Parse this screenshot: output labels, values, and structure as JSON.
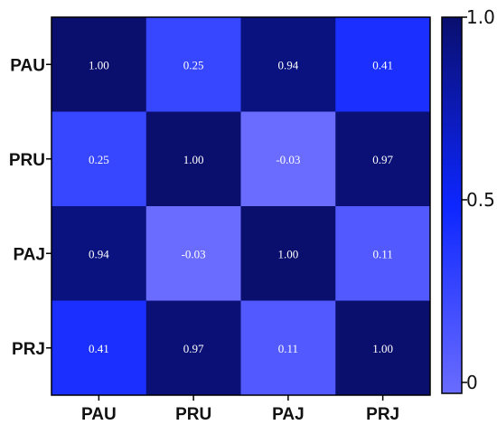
{
  "chart_data": {
    "type": "heatmap",
    "title": "",
    "xlabel": "",
    "ylabel": "",
    "rows": [
      "PAU",
      "PRU",
      "PAJ",
      "PRJ"
    ],
    "columns": [
      "PAU",
      "PRU",
      "PAJ",
      "PRJ"
    ],
    "values": [
      [
        1.0,
        0.25,
        0.94,
        0.41
      ],
      [
        0.25,
        1.0,
        -0.03,
        0.97
      ],
      [
        0.94,
        -0.03,
        1.0,
        0.11
      ],
      [
        0.41,
        0.97,
        0.11,
        1.0
      ]
    ],
    "value_labels": [
      [
        "1.00",
        "0.25",
        "0.94",
        "0.41"
      ],
      [
        "0.25",
        "1.00",
        "-0.03",
        "0.97"
      ],
      [
        "0.94",
        "-0.03",
        "1.00",
        "0.11"
      ],
      [
        "0.41",
        "0.97",
        "0.11",
        "1.00"
      ]
    ],
    "colorbar": {
      "range": [
        -0.03,
        1.0
      ],
      "ticks": [
        0,
        0.5,
        1.0
      ],
      "tick_labels": [
        "0",
        "0.5",
        "1.0"
      ],
      "color_low": "#6a6cff",
      "color_mid": "#0d26ff",
      "color_high": "#0a0f6e",
      "placement": "right"
    },
    "grid": false
  }
}
